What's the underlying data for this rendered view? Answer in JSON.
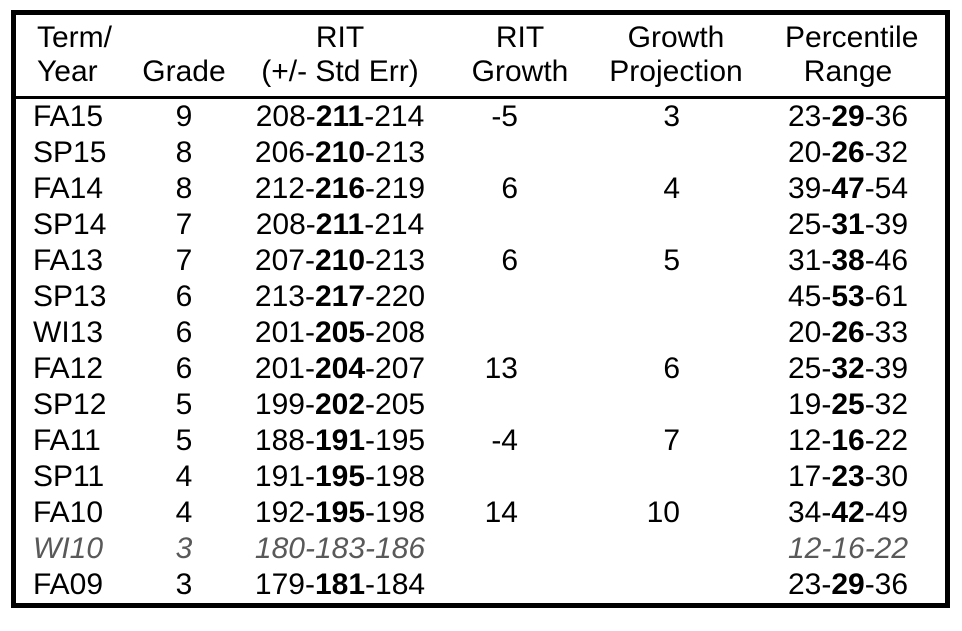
{
  "colors": {
    "text": "#000000",
    "muted_row_text": "#595959",
    "border": "#000000",
    "background": "#ffffff"
  },
  "table": {
    "headers": [
      {
        "id": "term",
        "line1": "Term/",
        "line2": "Year"
      },
      {
        "id": "grade",
        "line1": "",
        "line2": "Grade"
      },
      {
        "id": "rit",
        "line1": "RIT",
        "line2": "(+/- Std Err)"
      },
      {
        "id": "rit_growth",
        "line1": "RIT",
        "line2": "Growth"
      },
      {
        "id": "growth_projection",
        "line1": "Growth",
        "line2": "Projection"
      },
      {
        "id": "percentile",
        "line1": "Percentile",
        "line2": "Range"
      }
    ],
    "rows": [
      {
        "term": "FA15",
        "grade": "9",
        "rit": [
          "208",
          "211",
          "214"
        ],
        "rit_growth": "-5",
        "growth_projection": "3",
        "percentile": [
          "23",
          "29",
          "36"
        ],
        "muted": false
      },
      {
        "term": "SP15",
        "grade": "8",
        "rit": [
          "206",
          "210",
          "213"
        ],
        "rit_growth": "",
        "growth_projection": "",
        "percentile": [
          "20",
          "26",
          "32"
        ],
        "muted": false
      },
      {
        "term": "FA14",
        "grade": "8",
        "rit": [
          "212",
          "216",
          "219"
        ],
        "rit_growth": "6",
        "growth_projection": "4",
        "percentile": [
          "39",
          "47",
          "54"
        ],
        "muted": false
      },
      {
        "term": "SP14",
        "grade": "7",
        "rit": [
          "208",
          "211",
          "214"
        ],
        "rit_growth": "",
        "growth_projection": "",
        "percentile": [
          "25",
          "31",
          "39"
        ],
        "muted": false
      },
      {
        "term": "FA13",
        "grade": "7",
        "rit": [
          "207",
          "210",
          "213"
        ],
        "rit_growth": "6",
        "growth_projection": "5",
        "percentile": [
          "31",
          "38",
          "46"
        ],
        "muted": false
      },
      {
        "term": "SP13",
        "grade": "6",
        "rit": [
          "213",
          "217",
          "220"
        ],
        "rit_growth": "",
        "growth_projection": "",
        "percentile": [
          "45",
          "53",
          "61"
        ],
        "muted": false
      },
      {
        "term": "WI13",
        "grade": "6",
        "rit": [
          "201",
          "205",
          "208"
        ],
        "rit_growth": "",
        "growth_projection": "",
        "percentile": [
          "20",
          "26",
          "33"
        ],
        "muted": false
      },
      {
        "term": "FA12",
        "grade": "6",
        "rit": [
          "201",
          "204",
          "207"
        ],
        "rit_growth": "13",
        "growth_projection": "6",
        "percentile": [
          "25",
          "32",
          "39"
        ],
        "muted": false
      },
      {
        "term": "SP12",
        "grade": "5",
        "rit": [
          "199",
          "202",
          "205"
        ],
        "rit_growth": "",
        "growth_projection": "",
        "percentile": [
          "19",
          "25",
          "32"
        ],
        "muted": false
      },
      {
        "term": "FA11",
        "grade": "5",
        "rit": [
          "188",
          "191",
          "195"
        ],
        "rit_growth": "-4",
        "growth_projection": "7",
        "percentile": [
          "12",
          "16",
          "22"
        ],
        "muted": false
      },
      {
        "term": "SP11",
        "grade": "4",
        "rit": [
          "191",
          "195",
          "198"
        ],
        "rit_growth": "",
        "growth_projection": "",
        "percentile": [
          "17",
          "23",
          "30"
        ],
        "muted": false
      },
      {
        "term": "FA10",
        "grade": "4",
        "rit": [
          "192",
          "195",
          "198"
        ],
        "rit_growth": "14",
        "growth_projection": "10",
        "percentile": [
          "34",
          "42",
          "49"
        ],
        "muted": false
      },
      {
        "term": "WI10",
        "grade": "3",
        "rit": [
          "180",
          "183",
          "186"
        ],
        "rit_growth": "",
        "growth_projection": "",
        "percentile": [
          "12",
          "16",
          "22"
        ],
        "muted": true
      },
      {
        "term": "FA09",
        "grade": "3",
        "rit": [
          "179",
          "181",
          "184"
        ],
        "rit_growth": "",
        "growth_projection": "",
        "percentile": [
          "23",
          "29",
          "36"
        ],
        "muted": false
      }
    ]
  }
}
